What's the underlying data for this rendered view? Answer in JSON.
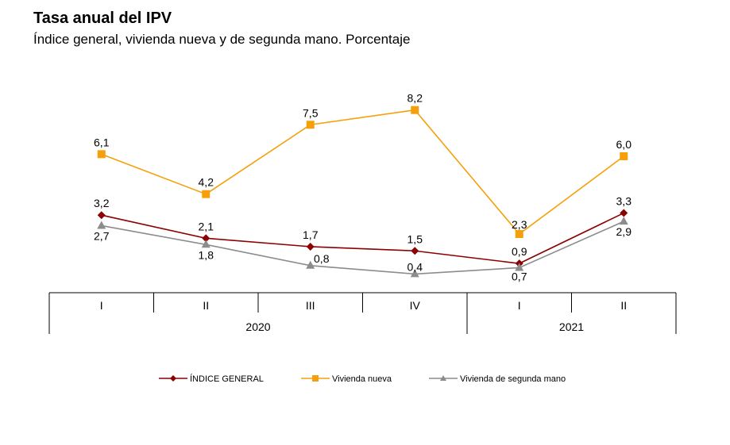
{
  "title": "Tasa anual del IPV",
  "subtitle": "Índice general, vivienda nueva y de segunda mano. Porcentaje",
  "chart_data": {
    "type": "line",
    "categories": [
      "I",
      "II",
      "III",
      "IV",
      "I",
      "II"
    ],
    "groups": [
      {
        "label": "2020",
        "span": 4
      },
      {
        "label": "2021",
        "span": 2
      }
    ],
    "series": [
      {
        "name": "ÍNDICE GENERAL",
        "values": [
          3.2,
          2.1,
          1.7,
          1.5,
          0.9,
          3.3
        ],
        "labels": [
          "3,2",
          "2,1",
          "1,7",
          "1,5",
          "0,9",
          "3,3"
        ],
        "color": "#8b0000",
        "marker": "diamond"
      },
      {
        "name": "Vivienda nueva",
        "values": [
          6.1,
          4.2,
          7.5,
          8.2,
          2.3,
          6.0
        ],
        "labels": [
          "6,1",
          "4,2",
          "7,5",
          "8,2",
          "2,3",
          "6,0"
        ],
        "color": "#f5a00a",
        "marker": "square"
      },
      {
        "name": "Vivienda de segunda mano",
        "values": [
          2.7,
          1.8,
          0.8,
          0.4,
          0.7,
          2.9
        ],
        "labels": [
          "2,7",
          "1,8",
          "0,8",
          "0,4",
          "0,7",
          "2,9"
        ],
        "color": "#8c8c8c",
        "marker": "triangle"
      }
    ],
    "grid": false,
    "legend": "bottom"
  }
}
